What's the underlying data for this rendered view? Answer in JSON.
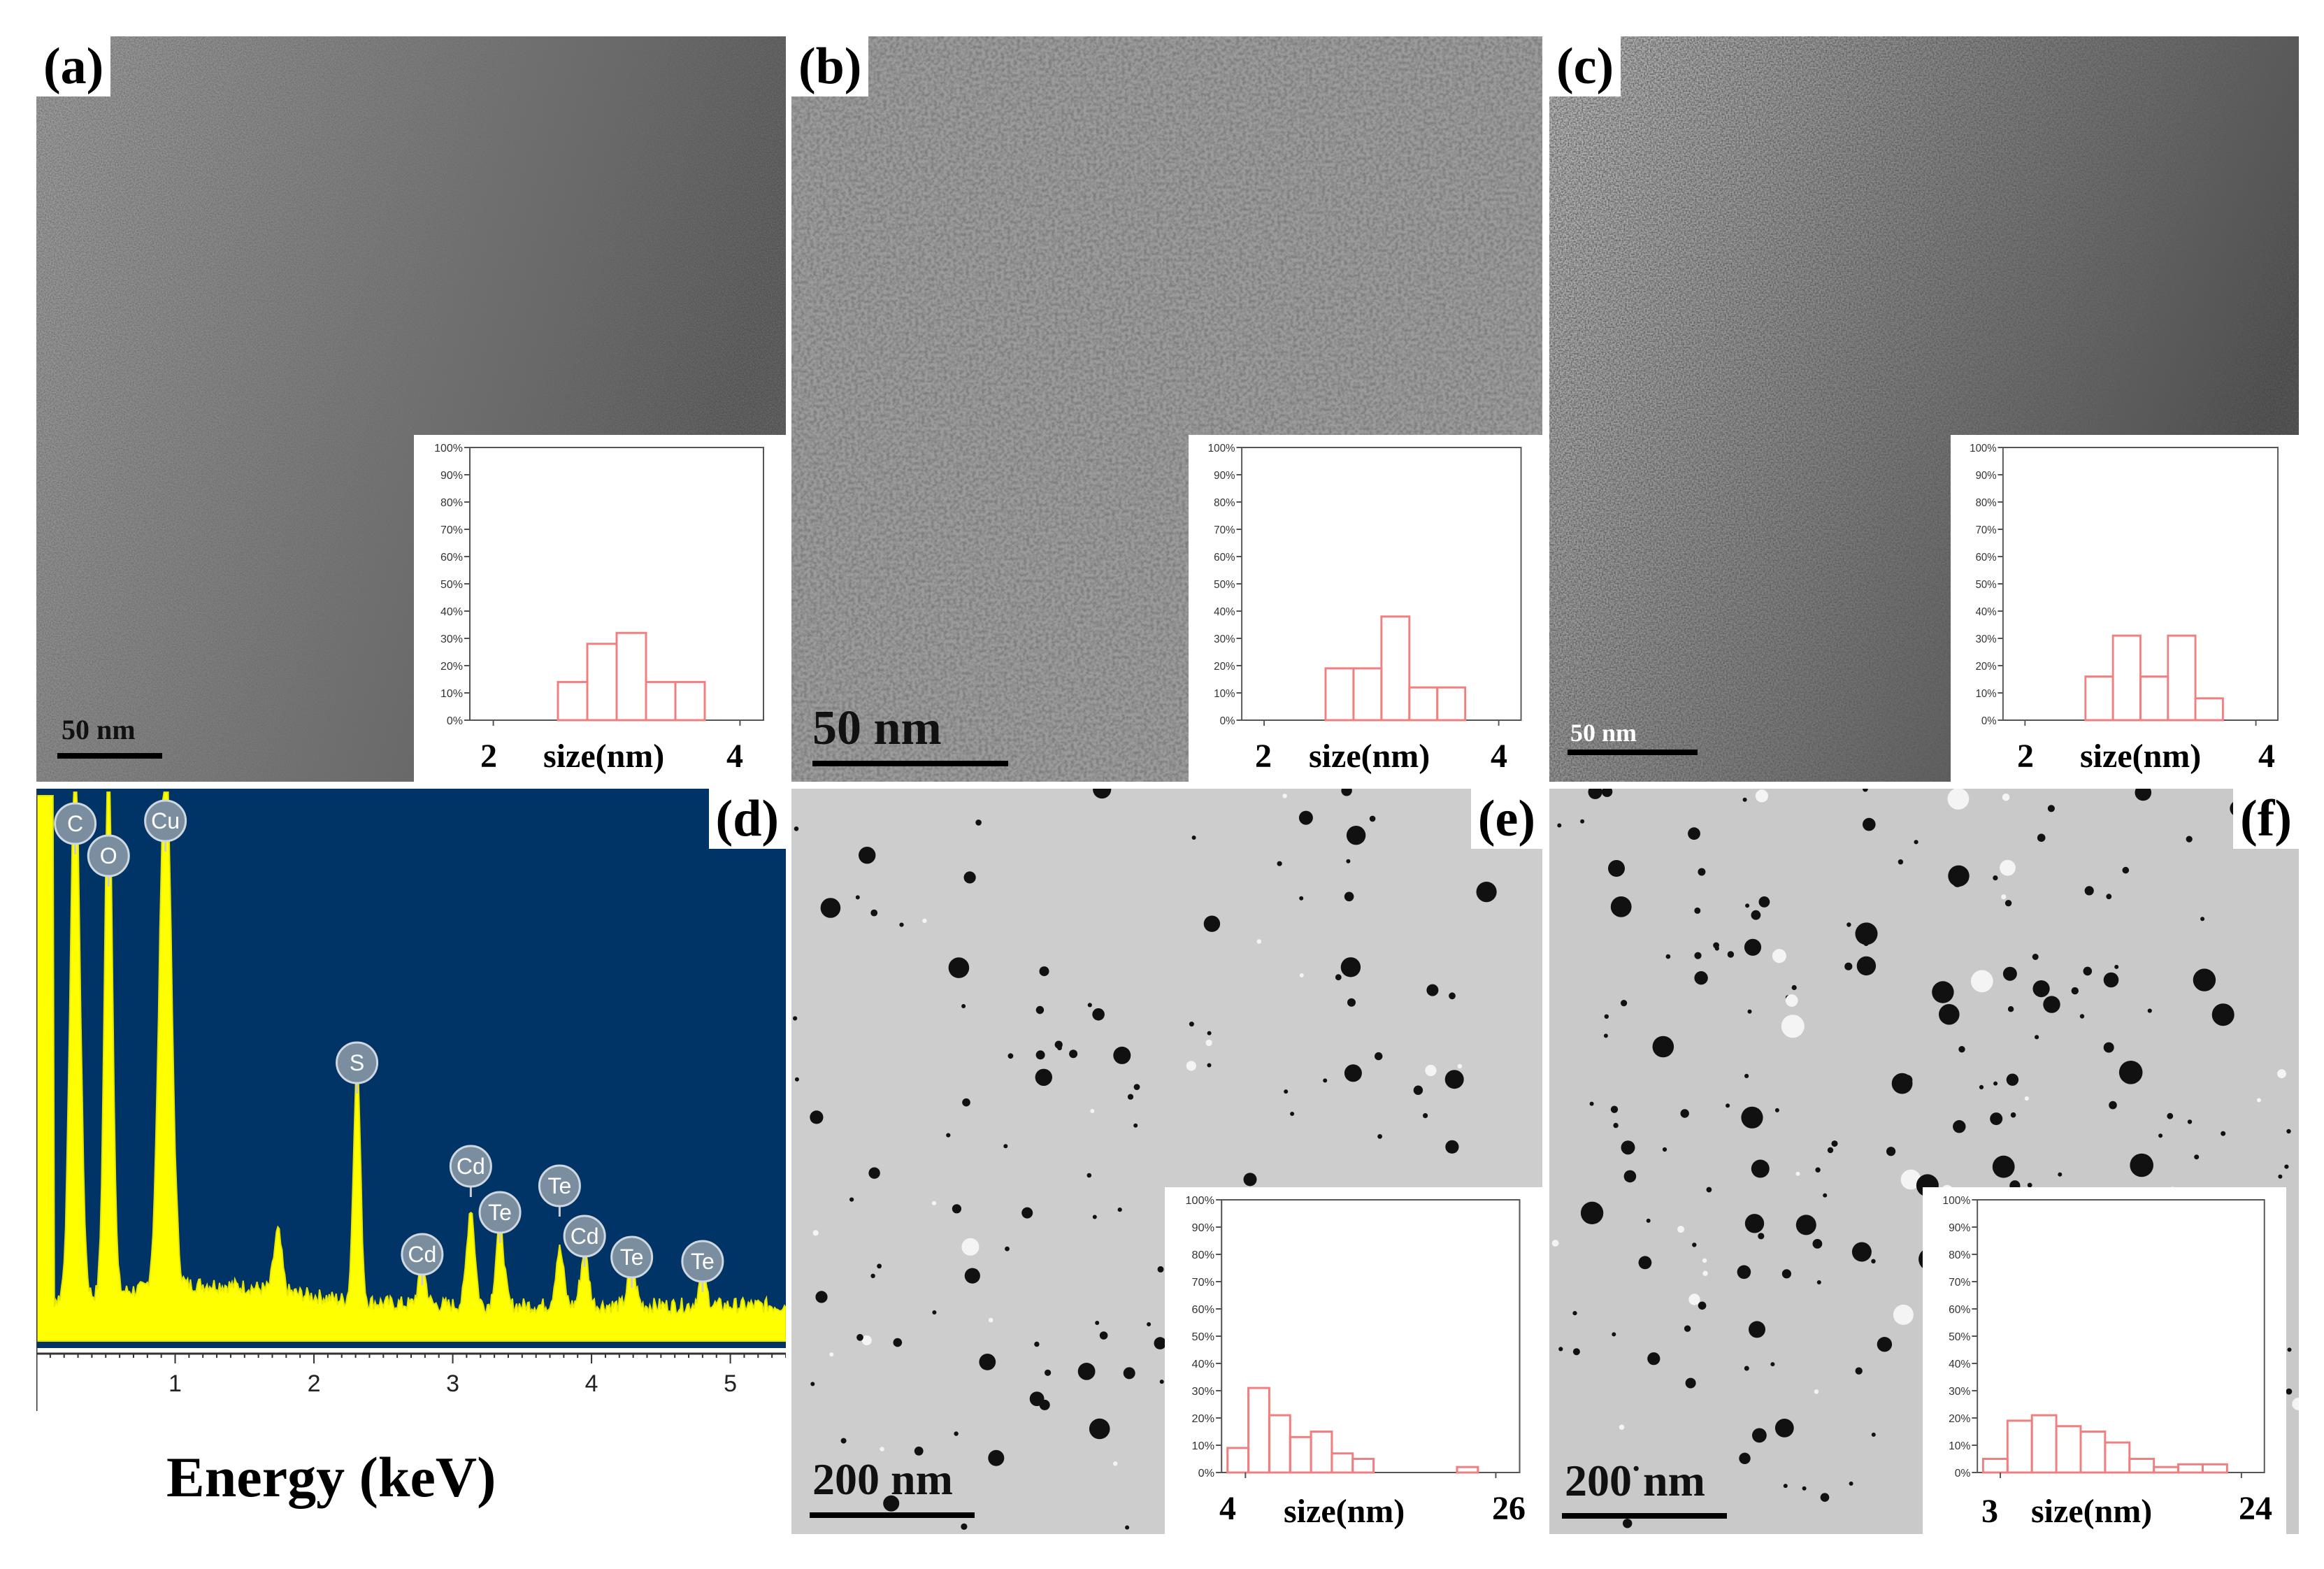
{
  "panels": {
    "a": {
      "label": "(a)",
      "scale": "50 nm"
    },
    "b": {
      "label": "(b)",
      "scale": "50 nm"
    },
    "c": {
      "label": "(c)",
      "scale": "50 nm"
    },
    "d": {
      "label": "(d)"
    },
    "e": {
      "label": "(e)",
      "scale": "200 nm"
    },
    "f": {
      "label": "(f)",
      "scale": "200 nm"
    }
  },
  "colors": {
    "eds_background": "#003366",
    "eds_spectrum": "#ffff00",
    "histogram": "#f08080"
  },
  "chart_data": [
    {
      "type": "bar",
      "panel": "a",
      "xlabel": "size(nm)",
      "xticks": [
        "2",
        "4"
      ],
      "x_range": [
        2,
        4
      ],
      "yticks": [
        "0%",
        "10%",
        "20%",
        "30%",
        "40%",
        "50%",
        "60%",
        "70%",
        "80%",
        "90%",
        "100%"
      ],
      "ylim": [
        0,
        100
      ],
      "bins": [
        2.2,
        2.4,
        2.6,
        2.8,
        3.0,
        3.2
      ],
      "values": [
        0,
        14,
        28,
        32,
        14,
        14
      ]
    },
    {
      "type": "bar",
      "panel": "b",
      "xlabel": "size(nm)",
      "xticks": [
        "2",
        "4"
      ],
      "x_range": [
        2,
        4
      ],
      "yticks": [
        "0%",
        "10%",
        "20%",
        "30%",
        "40%",
        "50%",
        "60%",
        "70%",
        "80%",
        "90%",
        "100%"
      ],
      "ylim": [
        0,
        100
      ],
      "bins": [
        2.2,
        2.4,
        2.6,
        2.8,
        3.0,
        3.2
      ],
      "values": [
        0,
        19,
        19,
        38,
        12,
        12
      ]
    },
    {
      "type": "bar",
      "panel": "c",
      "xlabel": "size(nm)",
      "xticks": [
        "2",
        "4"
      ],
      "x_range": [
        2,
        4
      ],
      "yticks": [
        "0%",
        "10%",
        "20%",
        "30%",
        "40%",
        "50%",
        "60%",
        "70%",
        "80%",
        "90%",
        "100%"
      ],
      "ylim": [
        0,
        100
      ],
      "bins": [
        2.2,
        2.4,
        2.6,
        2.8,
        3.0,
        3.2
      ],
      "values": [
        0,
        16,
        31,
        16,
        31,
        8
      ]
    },
    {
      "type": "line",
      "panel": "d",
      "xlabel": "Energy (keV)",
      "xticks": [
        "1",
        "2",
        "3",
        "4",
        "5"
      ],
      "xlim": [
        0,
        5.4
      ],
      "peaks": [
        {
          "element": "C",
          "energy": 0.28
        },
        {
          "element": "O",
          "energy": 0.52
        },
        {
          "element": "Cu",
          "energy": 0.93
        },
        {
          "element": "S",
          "energy": 2.31
        },
        {
          "element": "Cd",
          "energy": 2.78
        },
        {
          "element": "Cd",
          "energy": 3.13
        },
        {
          "element": "Te",
          "energy": 3.34
        },
        {
          "element": "Te",
          "energy": 3.77
        },
        {
          "element": "Cd",
          "energy": 3.95
        },
        {
          "element": "Te",
          "energy": 4.29
        },
        {
          "element": "Te",
          "energy": 4.8
        }
      ]
    },
    {
      "type": "bar",
      "panel": "e",
      "xlabel": "size(nm)",
      "xticks": [
        "4",
        "26"
      ],
      "x_range": [
        4,
        26
      ],
      "yticks": [
        "0%",
        "10%",
        "20%",
        "30%",
        "40%",
        "50%",
        "60%",
        "70%",
        "80%",
        "90%",
        "100%"
      ],
      "ylim": [
        0,
        100
      ],
      "values": [
        9,
        31,
        21,
        13,
        15,
        7,
        5,
        0,
        0,
        0,
        0,
        2
      ]
    },
    {
      "type": "bar",
      "panel": "f",
      "xlabel": "size(nm)",
      "xticks": [
        "3",
        "24"
      ],
      "x_range": [
        3,
        24
      ],
      "yticks": [
        "0%",
        "10%",
        "20%",
        "30%",
        "40%",
        "50%",
        "60%",
        "70%",
        "80%",
        "90%",
        "100%"
      ],
      "ylim": [
        0,
        100
      ],
      "values": [
        5,
        19,
        21,
        17,
        15,
        11,
        5,
        2,
        3,
        3
      ]
    }
  ]
}
